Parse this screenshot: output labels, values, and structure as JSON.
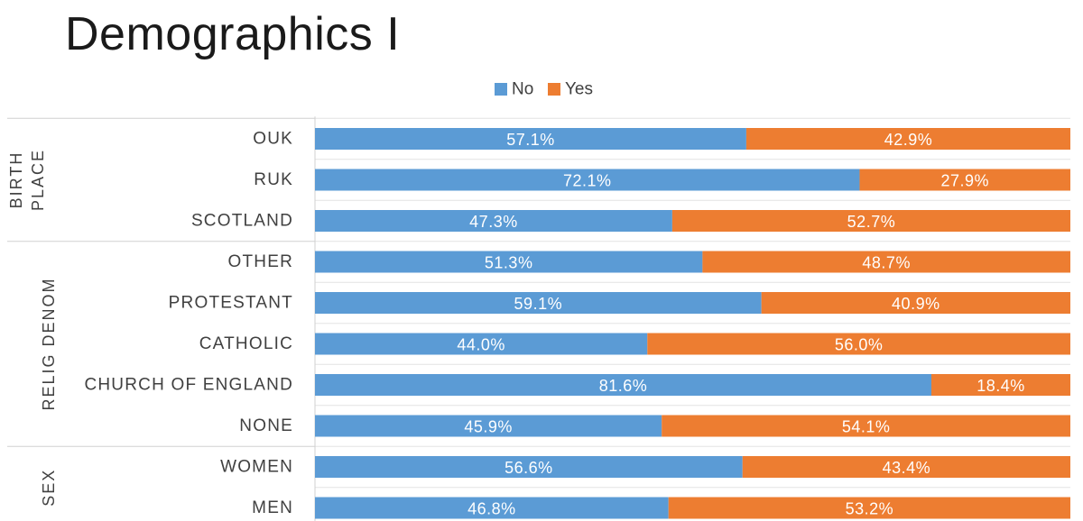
{
  "page": {
    "title": "Demographics I"
  },
  "chart_data": {
    "type": "bar",
    "orientation": "horizontal",
    "stacked": "100%",
    "categories": [
      "OUK",
      "RUK",
      "SCOTLAND",
      "OTHER",
      "PROTESTANT",
      "CATHOLIC",
      "CHURCH OF ENGLAND",
      "NONE",
      "WOMEN",
      "MEN"
    ],
    "groups": [
      {
        "label_lines": [
          "BIRTH",
          "PLACE"
        ],
        "categories": [
          "OUK",
          "RUK",
          "SCOTLAND"
        ]
      },
      {
        "label_lines": [
          "RELIG DENOM"
        ],
        "categories": [
          "OTHER",
          "PROTESTANT",
          "CATHOLIC",
          "CHURCH OF ENGLAND",
          "NONE"
        ]
      },
      {
        "label_lines": [
          "SEX"
        ],
        "categories": [
          "WOMEN",
          "MEN"
        ]
      }
    ],
    "series": [
      {
        "name": "No",
        "color": "#5B9BD5",
        "values": [
          57.1,
          72.1,
          47.3,
          51.3,
          59.1,
          44.0,
          81.6,
          45.9,
          56.6,
          46.8
        ],
        "labels": [
          "57.1%",
          "72.1%",
          "47.3%",
          "51.3%",
          "59.1%",
          "44.0%",
          "81.6%",
          "45.9%",
          "56.6%",
          "46.8%"
        ]
      },
      {
        "name": "Yes",
        "color": "#ED7D31",
        "values": [
          42.9,
          27.9,
          52.7,
          48.7,
          40.9,
          56.0,
          18.4,
          54.1,
          43.4,
          53.2
        ],
        "labels": [
          "42.9%",
          "27.9%",
          "52.7%",
          "48.7%",
          "40.9%",
          "56.0%",
          "18.4%",
          "54.1%",
          "43.4%",
          "53.2%"
        ]
      }
    ],
    "xlim": [
      0,
      100
    ],
    "legend": "top-center",
    "grid": true
  }
}
